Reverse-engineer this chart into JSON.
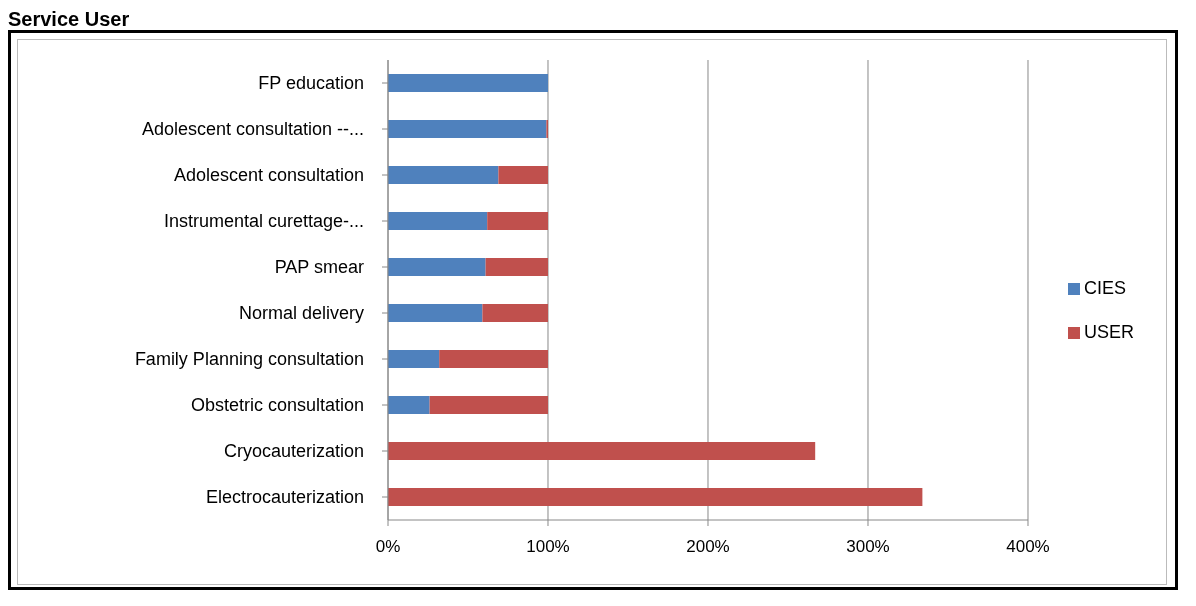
{
  "chart_data": {
    "type": "bar",
    "title": "Service User",
    "orientation": "horizontal",
    "stacked": true,
    "categories": [
      "FP education",
      "Adolescent consultation --...",
      "Adolescent consultation",
      "Instrumental curettage-...",
      "PAP smear",
      "Normal delivery",
      "Family Planning consultation",
      "Obstetric consultation",
      "Cryocauterization",
      "Electrocauterization"
    ],
    "series": [
      {
        "name": "CIES",
        "color": "#4f81bd",
        "values": [
          100,
          99,
          69,
          62,
          61,
          59,
          32,
          26,
          0,
          0
        ]
      },
      {
        "name": "USER",
        "color": "#c0504d",
        "values": [
          0,
          1,
          31,
          38,
          39,
          41,
          68,
          74,
          267,
          334
        ]
      }
    ],
    "xlim": [
      0,
      400
    ],
    "xticks": [
      {
        "value": 0,
        "label": "0%"
      },
      {
        "value": 100,
        "label": "100%"
      },
      {
        "value": 200,
        "label": "200%"
      },
      {
        "value": 300,
        "label": "300%"
      },
      {
        "value": 400,
        "label": "400%"
      }
    ],
    "grid": "x",
    "legend": "right"
  }
}
